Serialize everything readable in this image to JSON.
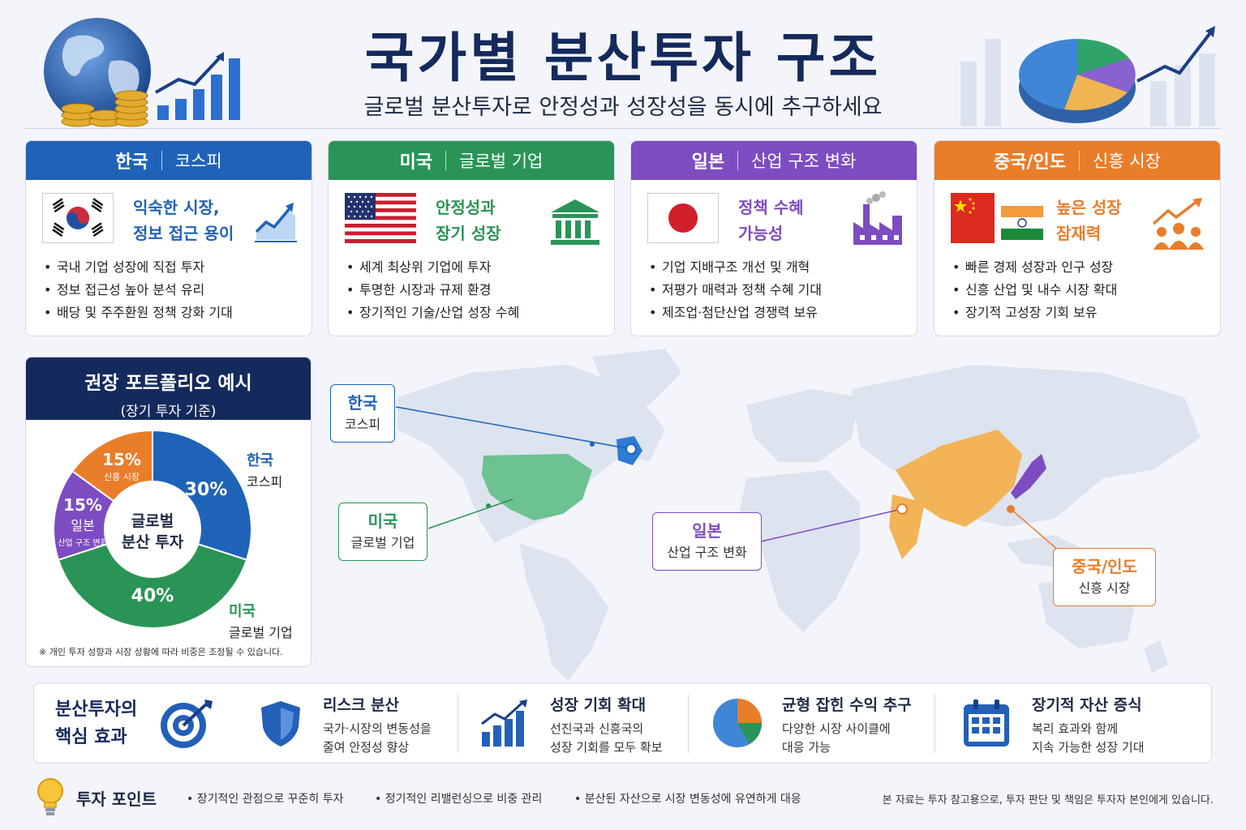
{
  "header": {
    "title": "국가별 분산투자 구조",
    "subtitle": "글로벌 분산투자로 안정성과 성장성을 동시에 추구하세요"
  },
  "cards": [
    {
      "country": "한국",
      "sub": "코스피",
      "color": "#1f63b8",
      "tagline_1": "익숙한 시장,",
      "tagline_2": "정보 접근 용이",
      "bullets": [
        "국내 기업 성장에 직접 투자",
        "정보 접근성 높아 분석 유리",
        "배당 및 주주환원 정책 강화 기대"
      ],
      "icon": "growth-chart-icon"
    },
    {
      "country": "미국",
      "sub": "글로벌 기업",
      "color": "#2a9457",
      "tagline_1": "안정성과",
      "tagline_2": "장기 성장",
      "bullets": [
        "세계 최상위 기업에 투자",
        "투명한 시장과 규제 환경",
        "장기적인 기술/산업 성장 수혜"
      ],
      "icon": "bank-building-icon"
    },
    {
      "country": "일본",
      "sub": "산업 구조 변화",
      "color": "#7d4cc1",
      "tagline_1": "정책 수혜",
      "tagline_2": "가능성",
      "bullets": [
        "기업 지배구조 개선 및 개혁",
        "저평가 매력과 정책 수혜 기대",
        "제조업·첨단산업 경쟁력 보유"
      ],
      "icon": "factory-icon"
    },
    {
      "country": "중국/인도",
      "sub": "신흥 시장",
      "color": "#ea7d2a",
      "tagline_1": "높은 성장",
      "tagline_2": "잠재력",
      "bullets": [
        "빠른 경제 성장과 인구 성장",
        "신흥 산업 및 내수 시장 확대",
        "장기적 고성장 기회 보유"
      ],
      "icon": "people-growth-icon"
    }
  ],
  "portfolio": {
    "title": "권장 포트폴리오 예시",
    "subtitle": "(장기 투자 기준)",
    "center_1": "글로벌",
    "center_2": "분산 투자",
    "note": "※ 개인 투자 성향과 시장 상황에 따라 비중은 조정될 수 있습니다.",
    "slices": [
      {
        "name": "한국",
        "sub": "코스피",
        "value": 30,
        "label": "30%",
        "color": "#1f63b8"
      },
      {
        "name": "미국",
        "sub": "글로벌 기업",
        "value": 40,
        "label": "40%",
        "color": "#2a9457"
      },
      {
        "name": "일본",
        "sub": "산업 구조 변화",
        "value": 15,
        "label": "15%",
        "color": "#7d4cc1"
      },
      {
        "name": "신흥 시장",
        "sub": "",
        "value": 15,
        "label": "15%",
        "color": "#ea7d2a"
      }
    ]
  },
  "map_labels": [
    {
      "title": "한국",
      "sub": "코스피",
      "color": "#1f63b8"
    },
    {
      "title": "미국",
      "sub": "글로벌 기업",
      "color": "#2a9457"
    },
    {
      "title": "일본",
      "sub": "산업 구조 변화",
      "color": "#7d4cc1"
    },
    {
      "title": "중국/인도",
      "sub": "신흥 시장",
      "color": "#ea7d2a"
    }
  ],
  "effects": {
    "title_1": "분산투자의",
    "title_2": "핵심 효과",
    "items": [
      {
        "title": "리스크 분산",
        "desc_1": "국가·시장의 변동성을",
        "desc_2": "줄여 안정성 향상",
        "icon": "shield-icon"
      },
      {
        "title": "성장 기회 확대",
        "desc_1": "선진국과 신흥국의",
        "desc_2": "성장 기회를 모두 확보",
        "icon": "bar-growth-icon"
      },
      {
        "title": "균형 잡힌 수익 추구",
        "desc_1": "다양한 시장 사이클에",
        "desc_2": "대응 가능",
        "icon": "pie-chart-icon"
      },
      {
        "title": "장기적 자산 증식",
        "desc_1": "복리 효과와 함께",
        "desc_2": "지속 가능한 성장 기대",
        "icon": "calendar-icon"
      }
    ]
  },
  "footer": {
    "tips_label": "투자 포인트",
    "tips": [
      "장기적인 관점으로 꾸준히 투자",
      "정기적인 리밸런싱으로 비중 관리",
      "분산된 자산으로 시장 변동성에 유연하게 대응"
    ],
    "disclaimer": "본 자료는 투자 참고용으로, 투자 판단 및 책임은 투자자 본인에게 있습니다."
  }
}
